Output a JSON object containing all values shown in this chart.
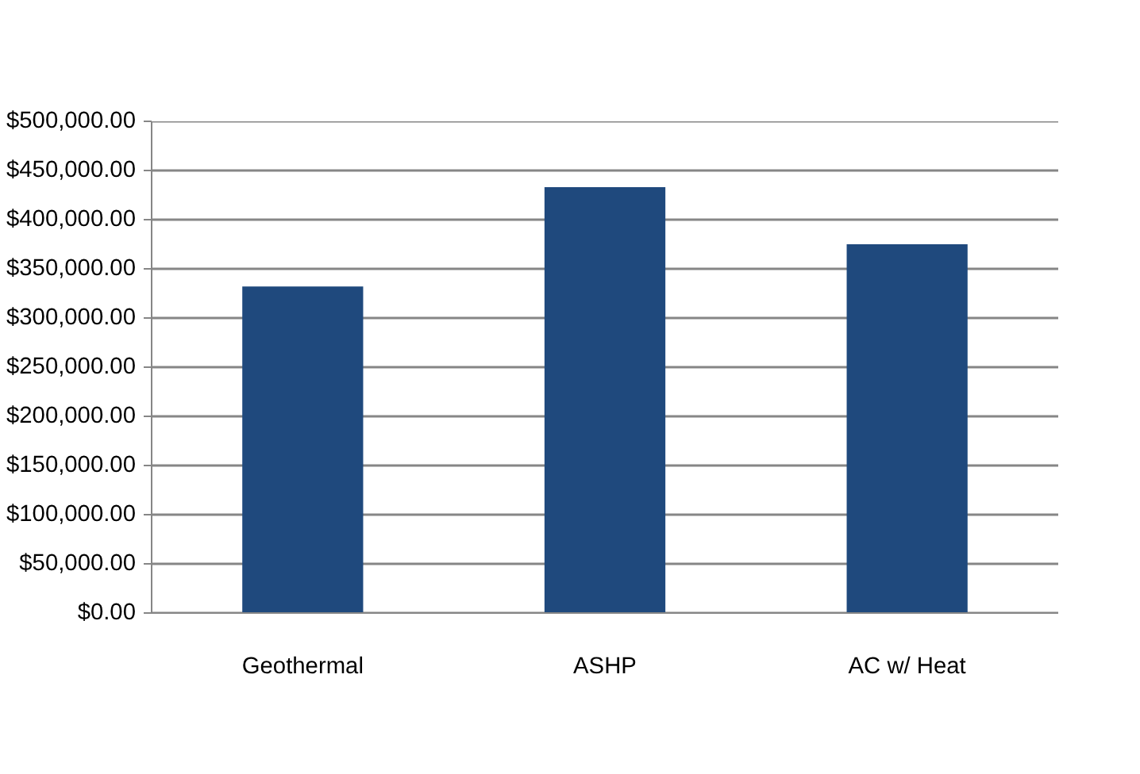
{
  "chart_data": {
    "type": "bar",
    "categories": [
      "Geothermal",
      "ASHP",
      "AC w/ Heat"
    ],
    "values": [
      332000,
      433000,
      375000
    ],
    "color": "#1f497d",
    "ylim": [
      0,
      500000
    ],
    "yticks": [
      {
        "value": 0,
        "label": "$0.00"
      },
      {
        "value": 50000,
        "label": "$50,000.00"
      },
      {
        "value": 100000,
        "label": "$100,000.00"
      },
      {
        "value": 150000,
        "label": "$150,000.00"
      },
      {
        "value": 200000,
        "label": "$200,000.00"
      },
      {
        "value": 250000,
        "label": "$250,000.00"
      },
      {
        "value": 300000,
        "label": "$300,000.00"
      },
      {
        "value": 350000,
        "label": "$350,000.00"
      },
      {
        "value": 400000,
        "label": "$400,000.00"
      },
      {
        "value": 450000,
        "label": "$450,000.00"
      },
      {
        "value": 500000,
        "label": "$500,000.00"
      }
    ],
    "grid": "y"
  }
}
